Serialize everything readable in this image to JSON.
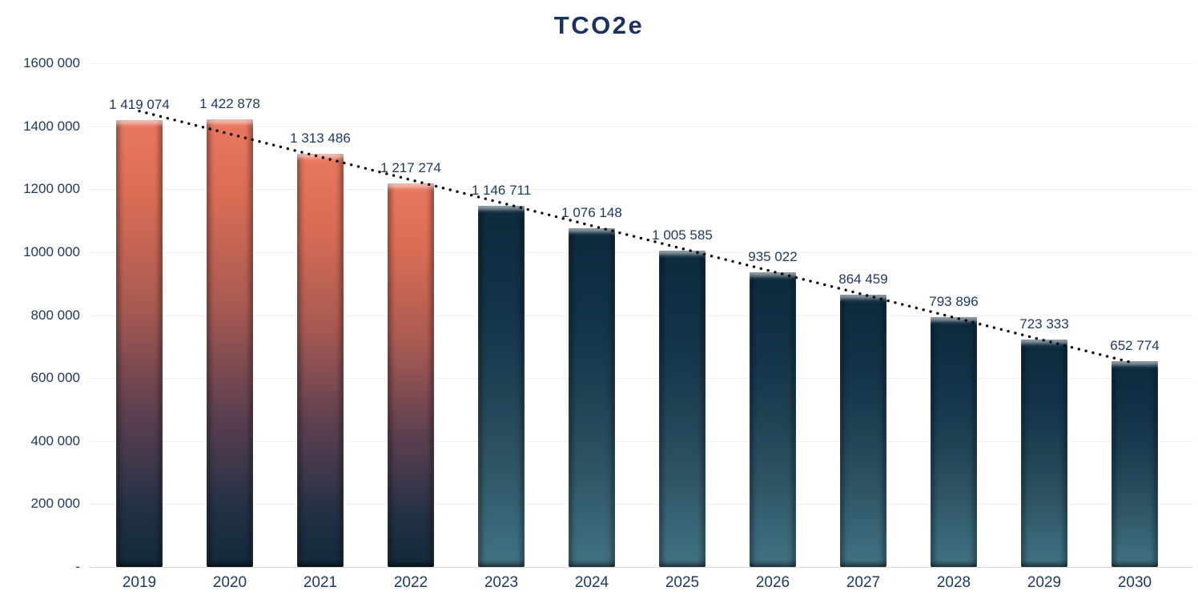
{
  "title": "TCO2e",
  "colors": {
    "text_navy": "#1F3864",
    "title_navy": "#1B3160",
    "trendline_black": "#000000",
    "baseline_gray": "#D9D9D9",
    "gridline_gray": "#F2F2F2",
    "bar_red_top": "#EA7860",
    "bar_red_bottom": "#13293B",
    "bar_teal_top": "#0D2A3E",
    "bar_teal_bottom": "#42707F",
    "background": "#FFFFFF"
  },
  "chart_data": {
    "type": "bar",
    "title": "TCO2e",
    "xlabel": "",
    "ylabel": "",
    "categories": [
      "2019",
      "2020",
      "2021",
      "2022",
      "2023",
      "2024",
      "2025",
      "2026",
      "2027",
      "2028",
      "2029",
      "2030"
    ],
    "values": [
      1419074,
      1422878,
      1313486,
      1217274,
      1146711,
      1076148,
      1005585,
      935022,
      864459,
      793896,
      723333,
      652774
    ],
    "value_labels": [
      "1 419 074",
      "1 422 878",
      "1 313 486",
      "1 217 274",
      "1 146 711",
      "1 076 148",
      "1 005 585",
      "935 022",
      "864 459",
      "793 896",
      "723 333",
      "652 774"
    ],
    "bar_styles": [
      "red",
      "red",
      "red",
      "red",
      "teal",
      "teal",
      "teal",
      "teal",
      "teal",
      "teal",
      "teal",
      "teal"
    ],
    "ylim": [
      0,
      1600000
    ],
    "ytick_interval": 200000,
    "ytick_labels": [
      "1600 000",
      "1400 000",
      "1200 000",
      "1000 000",
      "800 000",
      "600 000",
      "400 000",
      "200 000",
      "-"
    ],
    "grid": "horizontal-faint",
    "legend": "none",
    "trendline": {
      "type": "linear",
      "style": "dotted",
      "color": "#000000"
    }
  }
}
